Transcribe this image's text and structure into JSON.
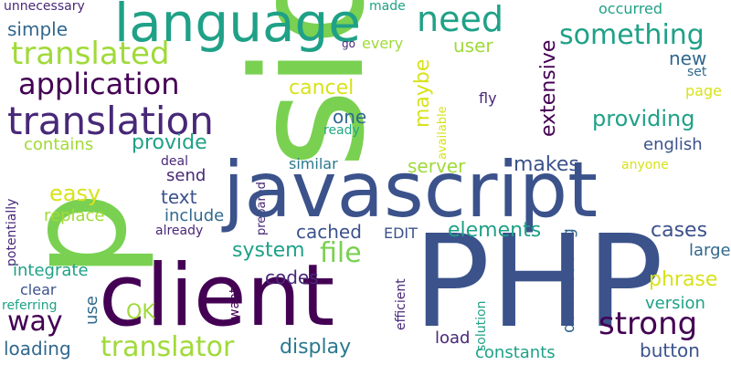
{
  "palette": {
    "green": "#7ad151",
    "lime": "#a0da39",
    "yellow": "#d8e219",
    "teal": "#1fa187",
    "teal2": "#22a884",
    "navy": "#3b528b",
    "indigo": "#31688e",
    "purple": "#440154",
    "violet": "#482878",
    "blue": "#2a788e"
  },
  "words": [
    {
      "text": "side"
    },
    {
      "text": "javascript"
    },
    {
      "text": "PHP"
    },
    {
      "text": "client"
    },
    {
      "text": "p"
    },
    {
      "text": "language"
    },
    {
      "text": "translation"
    },
    {
      "text": "need"
    },
    {
      "text": "translated"
    },
    {
      "text": "application"
    },
    {
      "text": "something"
    },
    {
      "text": "strong"
    },
    {
      "text": "translator"
    },
    {
      "text": "file"
    },
    {
      "text": "way"
    },
    {
      "text": "providing"
    },
    {
      "text": "extensive"
    },
    {
      "text": "elements"
    },
    {
      "text": "cancel"
    },
    {
      "text": "phrase"
    },
    {
      "text": "simple"
    },
    {
      "text": "user"
    },
    {
      "text": "unnecessary"
    },
    {
      "text": "made"
    },
    {
      "text": "occurred"
    },
    {
      "text": "go"
    },
    {
      "text": "every"
    },
    {
      "text": "new"
    },
    {
      "text": "maybe"
    },
    {
      "text": "one"
    },
    {
      "text": "provide"
    },
    {
      "text": "contains"
    },
    {
      "text": "english"
    },
    {
      "text": "makes"
    },
    {
      "text": "server"
    },
    {
      "text": "send"
    },
    {
      "text": "deal"
    },
    {
      "text": "similar"
    },
    {
      "text": "anyone"
    },
    {
      "text": "easy"
    },
    {
      "text": "text"
    },
    {
      "text": "replace"
    },
    {
      "text": "include"
    },
    {
      "text": "cached"
    },
    {
      "text": "system"
    },
    {
      "text": "cases"
    },
    {
      "text": "already"
    },
    {
      "text": "EDIT"
    },
    {
      "text": "potentially"
    },
    {
      "text": "prepared"
    },
    {
      "text": "large"
    },
    {
      "text": "integrate"
    },
    {
      "text": "codes"
    },
    {
      "text": "use"
    },
    {
      "text": "want"
    },
    {
      "text": "OK"
    },
    {
      "text": "efficient"
    },
    {
      "text": "downloading"
    },
    {
      "text": "version"
    },
    {
      "text": "button"
    },
    {
      "text": "display"
    },
    {
      "text": "loading"
    },
    {
      "text": "load"
    },
    {
      "text": "constants"
    },
    {
      "text": "solution"
    },
    {
      "text": "clear"
    },
    {
      "text": "referring"
    },
    {
      "text": "set"
    },
    {
      "text": "page"
    },
    {
      "text": "fly"
    },
    {
      "text": "ready"
    },
    {
      "text": "available"
    }
  ]
}
